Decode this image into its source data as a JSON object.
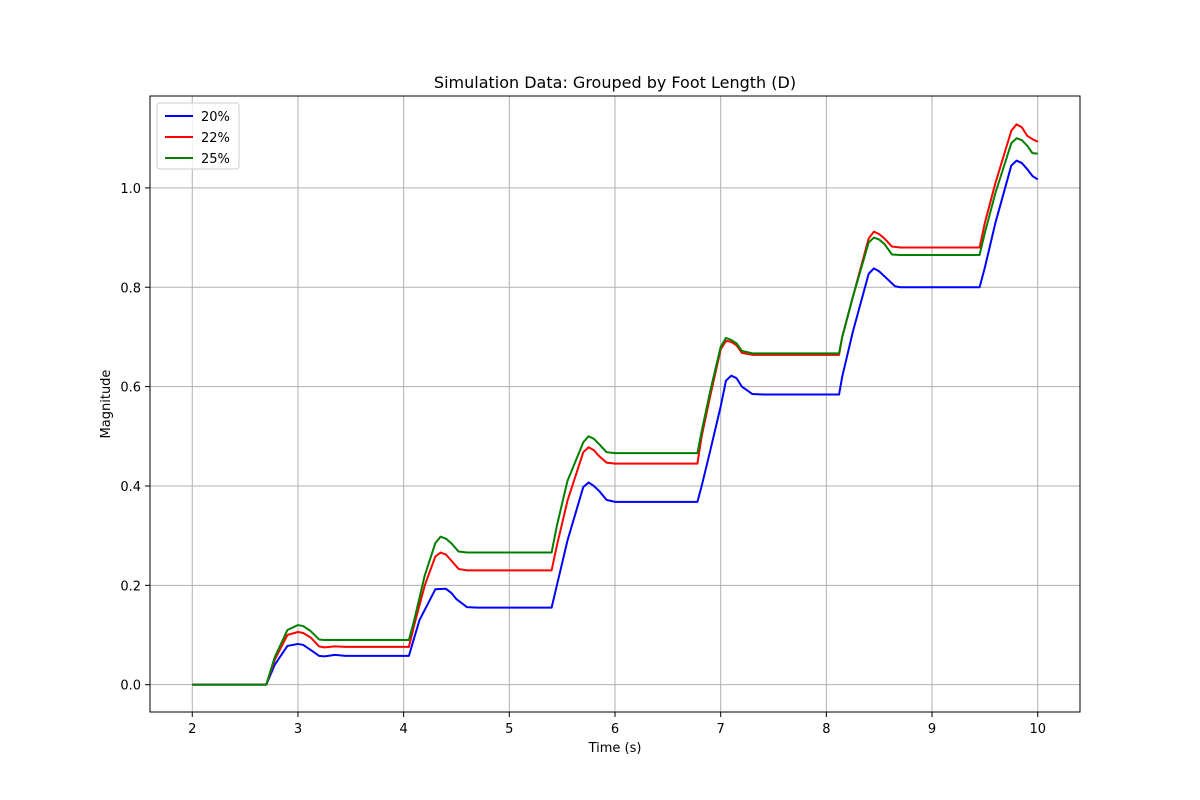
{
  "chart_data": {
    "type": "line",
    "title": "Simulation Data: Grouped by Foot Length (D)",
    "xlabel": "Time (s)",
    "ylabel": "Magnitude",
    "xlim": [
      1.6,
      10.4
    ],
    "ylim": [
      -0.055,
      1.185
    ],
    "xticks": [
      2,
      3,
      4,
      5,
      6,
      7,
      8,
      9,
      10
    ],
    "yticks": [
      0.0,
      0.2,
      0.4,
      0.6,
      0.8,
      1.0
    ],
    "xtick_labels": [
      "2",
      "3",
      "4",
      "5",
      "6",
      "7",
      "8",
      "9",
      "10"
    ],
    "ytick_labels": [
      "0.0",
      "0.2",
      "0.4",
      "0.6",
      "0.8",
      "1.0"
    ],
    "grid": true,
    "legend_position": "top-left",
    "series": [
      {
        "name": "20%",
        "color": "#0000ff",
        "points": [
          [
            2.0,
            0.0
          ],
          [
            2.7,
            0.0
          ],
          [
            2.78,
            0.04
          ],
          [
            2.9,
            0.078
          ],
          [
            3.0,
            0.082
          ],
          [
            3.05,
            0.08
          ],
          [
            3.12,
            0.07
          ],
          [
            3.2,
            0.058
          ],
          [
            3.25,
            0.057
          ],
          [
            3.35,
            0.06
          ],
          [
            3.45,
            0.058
          ],
          [
            4.05,
            0.058
          ],
          [
            4.08,
            0.08
          ],
          [
            4.15,
            0.13
          ],
          [
            4.3,
            0.192
          ],
          [
            4.4,
            0.193
          ],
          [
            4.45,
            0.185
          ],
          [
            4.5,
            0.172
          ],
          [
            4.6,
            0.156
          ],
          [
            4.7,
            0.155
          ],
          [
            5.4,
            0.155
          ],
          [
            5.45,
            0.2
          ],
          [
            5.55,
            0.29
          ],
          [
            5.7,
            0.398
          ],
          [
            5.75,
            0.407
          ],
          [
            5.8,
            0.4
          ],
          [
            5.85,
            0.39
          ],
          [
            5.92,
            0.372
          ],
          [
            6.0,
            0.368
          ],
          [
            6.78,
            0.368
          ],
          [
            6.82,
            0.4
          ],
          [
            6.9,
            0.47
          ],
          [
            7.0,
            0.56
          ],
          [
            7.05,
            0.612
          ],
          [
            7.1,
            0.622
          ],
          [
            7.15,
            0.617
          ],
          [
            7.2,
            0.6
          ],
          [
            7.3,
            0.585
          ],
          [
            7.4,
            0.584
          ],
          [
            8.12,
            0.584
          ],
          [
            8.15,
            0.62
          ],
          [
            8.25,
            0.71
          ],
          [
            8.4,
            0.827
          ],
          [
            8.45,
            0.838
          ],
          [
            8.5,
            0.832
          ],
          [
            8.55,
            0.822
          ],
          [
            8.65,
            0.802
          ],
          [
            8.7,
            0.8
          ],
          [
            9.45,
            0.8
          ],
          [
            9.5,
            0.84
          ],
          [
            9.6,
            0.93
          ],
          [
            9.75,
            1.045
          ],
          [
            9.8,
            1.055
          ],
          [
            9.85,
            1.05
          ],
          [
            9.9,
            1.038
          ],
          [
            9.95,
            1.024
          ],
          [
            10.0,
            1.017
          ]
        ]
      },
      {
        "name": "22%",
        "color": "#ff0000",
        "points": [
          [
            2.0,
            0.0
          ],
          [
            2.7,
            0.0
          ],
          [
            2.78,
            0.05
          ],
          [
            2.9,
            0.1
          ],
          [
            3.0,
            0.106
          ],
          [
            3.05,
            0.104
          ],
          [
            3.12,
            0.095
          ],
          [
            3.2,
            0.077
          ],
          [
            3.25,
            0.075
          ],
          [
            3.35,
            0.077
          ],
          [
            3.45,
            0.076
          ],
          [
            4.05,
            0.076
          ],
          [
            4.1,
            0.12
          ],
          [
            4.2,
            0.2
          ],
          [
            4.3,
            0.258
          ],
          [
            4.35,
            0.266
          ],
          [
            4.4,
            0.262
          ],
          [
            4.45,
            0.25
          ],
          [
            4.52,
            0.233
          ],
          [
            4.6,
            0.23
          ],
          [
            5.4,
            0.23
          ],
          [
            5.45,
            0.28
          ],
          [
            5.55,
            0.37
          ],
          [
            5.7,
            0.468
          ],
          [
            5.75,
            0.478
          ],
          [
            5.8,
            0.472
          ],
          [
            5.85,
            0.46
          ],
          [
            5.92,
            0.447
          ],
          [
            6.0,
            0.445
          ],
          [
            6.78,
            0.445
          ],
          [
            6.82,
            0.5
          ],
          [
            6.9,
            0.58
          ],
          [
            7.0,
            0.675
          ],
          [
            7.05,
            0.692
          ],
          [
            7.1,
            0.69
          ],
          [
            7.15,
            0.683
          ],
          [
            7.2,
            0.668
          ],
          [
            7.3,
            0.664
          ],
          [
            8.12,
            0.664
          ],
          [
            8.15,
            0.7
          ],
          [
            8.25,
            0.78
          ],
          [
            8.4,
            0.898
          ],
          [
            8.45,
            0.912
          ],
          [
            8.5,
            0.907
          ],
          [
            8.55,
            0.898
          ],
          [
            8.62,
            0.882
          ],
          [
            8.7,
            0.88
          ],
          [
            9.45,
            0.88
          ],
          [
            9.5,
            0.93
          ],
          [
            9.6,
            1.01
          ],
          [
            9.75,
            1.115
          ],
          [
            9.8,
            1.128
          ],
          [
            9.85,
            1.122
          ],
          [
            9.9,
            1.105
          ],
          [
            9.95,
            1.098
          ],
          [
            10.0,
            1.093
          ]
        ]
      },
      {
        "name": "25%",
        "color": "#008000",
        "points": [
          [
            2.0,
            0.0
          ],
          [
            2.7,
            0.0
          ],
          [
            2.78,
            0.055
          ],
          [
            2.9,
            0.11
          ],
          [
            3.0,
            0.12
          ],
          [
            3.05,
            0.118
          ],
          [
            3.12,
            0.108
          ],
          [
            3.2,
            0.091
          ],
          [
            3.25,
            0.09
          ],
          [
            3.45,
            0.09
          ],
          [
            4.05,
            0.09
          ],
          [
            4.1,
            0.13
          ],
          [
            4.2,
            0.22
          ],
          [
            4.3,
            0.285
          ],
          [
            4.35,
            0.298
          ],
          [
            4.4,
            0.294
          ],
          [
            4.45,
            0.285
          ],
          [
            4.52,
            0.268
          ],
          [
            4.6,
            0.266
          ],
          [
            5.4,
            0.266
          ],
          [
            5.45,
            0.32
          ],
          [
            5.55,
            0.41
          ],
          [
            5.7,
            0.488
          ],
          [
            5.75,
            0.5
          ],
          [
            5.8,
            0.495
          ],
          [
            5.85,
            0.484
          ],
          [
            5.92,
            0.468
          ],
          [
            6.0,
            0.466
          ],
          [
            6.78,
            0.466
          ],
          [
            6.82,
            0.51
          ],
          [
            6.9,
            0.59
          ],
          [
            7.0,
            0.68
          ],
          [
            7.05,
            0.698
          ],
          [
            7.1,
            0.694
          ],
          [
            7.15,
            0.687
          ],
          [
            7.2,
            0.672
          ],
          [
            7.3,
            0.667
          ],
          [
            8.12,
            0.667
          ],
          [
            8.15,
            0.7
          ],
          [
            8.25,
            0.78
          ],
          [
            8.4,
            0.89
          ],
          [
            8.45,
            0.9
          ],
          [
            8.5,
            0.896
          ],
          [
            8.55,
            0.887
          ],
          [
            8.62,
            0.866
          ],
          [
            8.7,
            0.865
          ],
          [
            9.45,
            0.865
          ],
          [
            9.5,
            0.91
          ],
          [
            9.6,
            0.99
          ],
          [
            9.75,
            1.09
          ],
          [
            9.8,
            1.1
          ],
          [
            9.85,
            1.096
          ],
          [
            9.9,
            1.085
          ],
          [
            9.95,
            1.07
          ],
          [
            10.0,
            1.069
          ]
        ]
      }
    ]
  }
}
